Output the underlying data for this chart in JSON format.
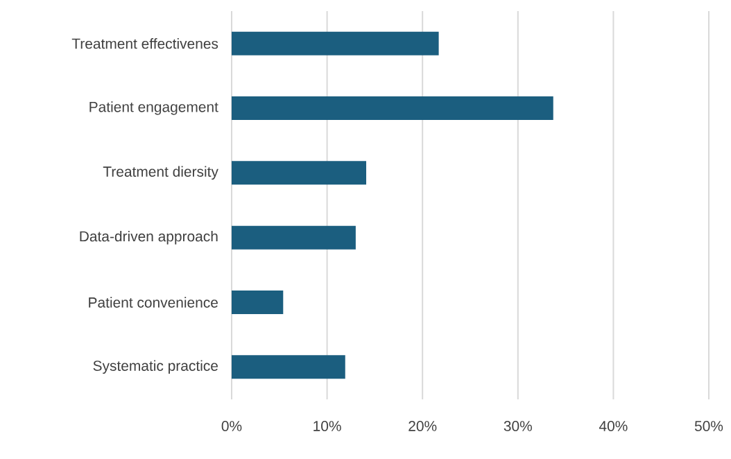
{
  "chart_data": {
    "type": "bar",
    "orientation": "horizontal",
    "categories": [
      "Treatment effectivenes",
      "Patient engagement",
      "Treatment diersity",
      "Data-driven approach",
      "Patient convenience",
      "Systematic practice"
    ],
    "values": [
      21.7,
      33.7,
      14.1,
      13.0,
      5.4,
      11.9
    ],
    "color": "#1b5e7f",
    "xlim": [
      0,
      50
    ],
    "xticks": [
      {
        "value": 0,
        "label": "0%"
      },
      {
        "value": 10,
        "label": "10%"
      },
      {
        "value": 20,
        "label": "20%"
      },
      {
        "value": 30,
        "label": "30%"
      },
      {
        "value": 40,
        "label": "40%"
      },
      {
        "value": 50,
        "label": "50%"
      }
    ],
    "grid": "x"
  }
}
